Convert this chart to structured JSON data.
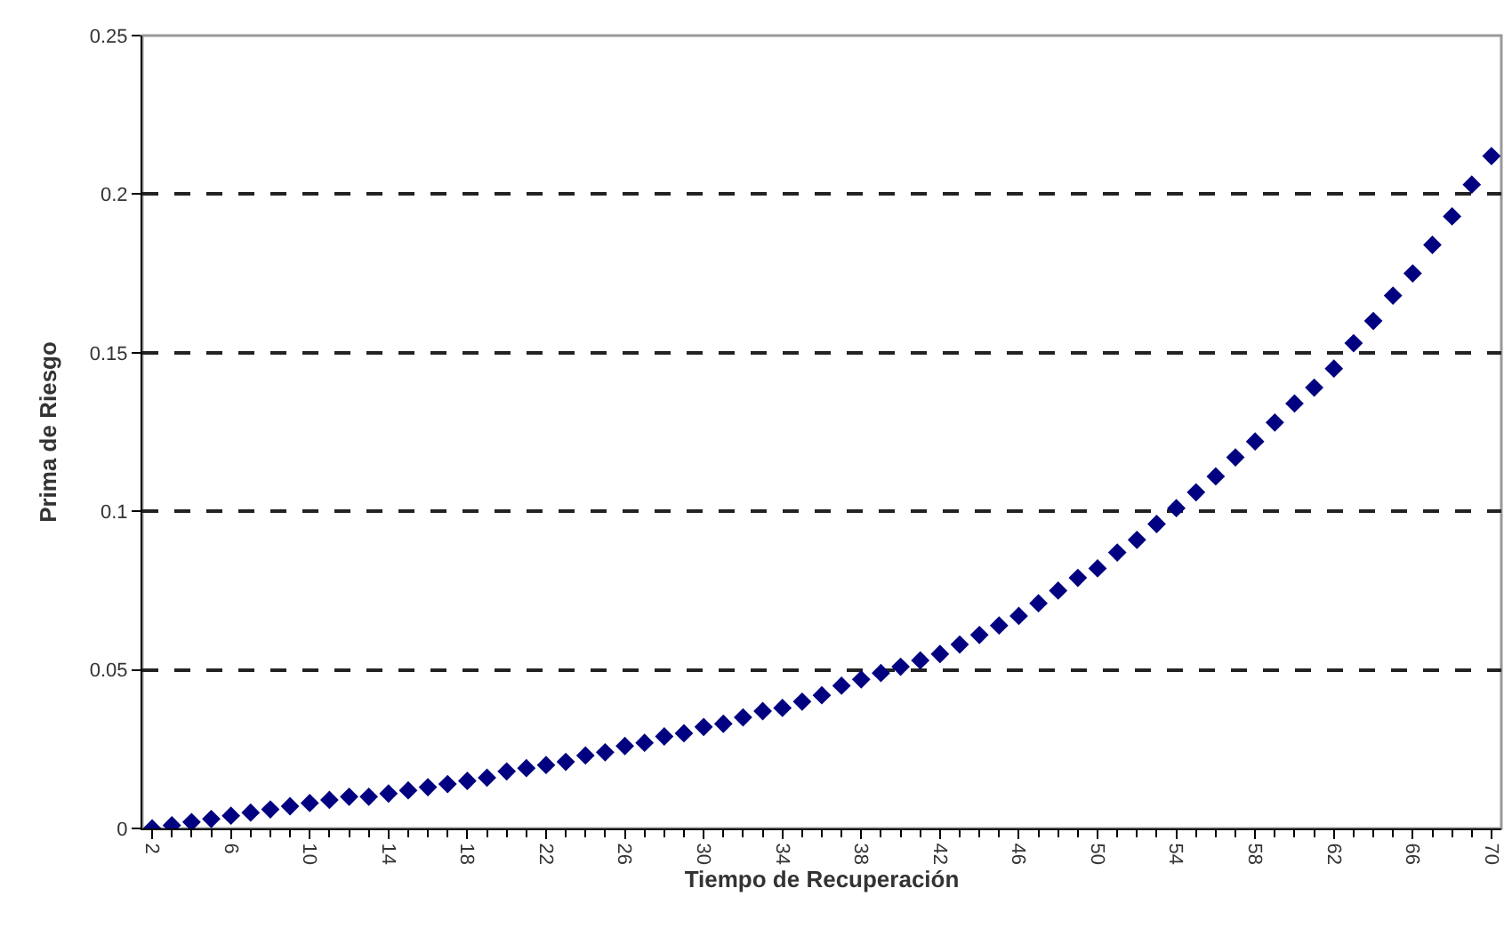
{
  "chart_data": {
    "type": "scatter",
    "xlabel": "Tiempo de Recuperación",
    "ylabel": "Prima de Riesgo",
    "x": [
      2,
      3,
      4,
      5,
      6,
      7,
      8,
      9,
      10,
      11,
      12,
      13,
      14,
      15,
      16,
      17,
      18,
      19,
      20,
      21,
      22,
      23,
      24,
      25,
      26,
      27,
      28,
      29,
      30,
      31,
      32,
      33,
      34,
      35,
      36,
      37,
      38,
      39,
      40,
      41,
      42,
      43,
      44,
      45,
      46,
      47,
      48,
      49,
      50,
      51,
      52,
      53,
      54,
      55,
      56,
      57,
      58,
      59,
      60,
      61,
      62,
      63,
      64,
      65,
      66,
      67,
      68,
      69,
      70
    ],
    "series": [
      {
        "color": "#000080",
        "values": [
          0.0,
          0.001,
          0.002,
          0.003,
          0.004,
          0.005,
          0.006,
          0.007,
          0.008,
          0.009,
          0.01,
          0.01,
          0.011,
          0.012,
          0.013,
          0.014,
          0.015,
          0.016,
          0.018,
          0.019,
          0.02,
          0.021,
          0.023,
          0.024,
          0.026,
          0.027,
          0.029,
          0.03,
          0.032,
          0.033,
          0.035,
          0.037,
          0.038,
          0.04,
          0.042,
          0.045,
          0.047,
          0.049,
          0.051,
          0.053,
          0.055,
          0.058,
          0.061,
          0.064,
          0.067,
          0.071,
          0.075,
          0.079,
          0.082,
          0.087,
          0.091,
          0.096,
          0.101,
          0.106,
          0.111,
          0.117,
          0.122,
          0.128,
          0.134,
          0.139,
          0.145,
          0.153,
          0.16,
          0.168,
          0.175,
          0.184,
          0.193,
          0.203,
          0.212
        ]
      }
    ],
    "xlim": [
      1.5,
      70.5
    ],
    "xticks": [
      2,
      6,
      10,
      14,
      18,
      22,
      26,
      30,
      34,
      38,
      42,
      46,
      50,
      54,
      58,
      62,
      66,
      70
    ],
    "ylim": [
      0,
      0.25
    ],
    "yticks": [
      0,
      0.05,
      0.1,
      0.15,
      0.2,
      0.25
    ],
    "grid": "y",
    "marker": "diamond",
    "legend": false
  }
}
